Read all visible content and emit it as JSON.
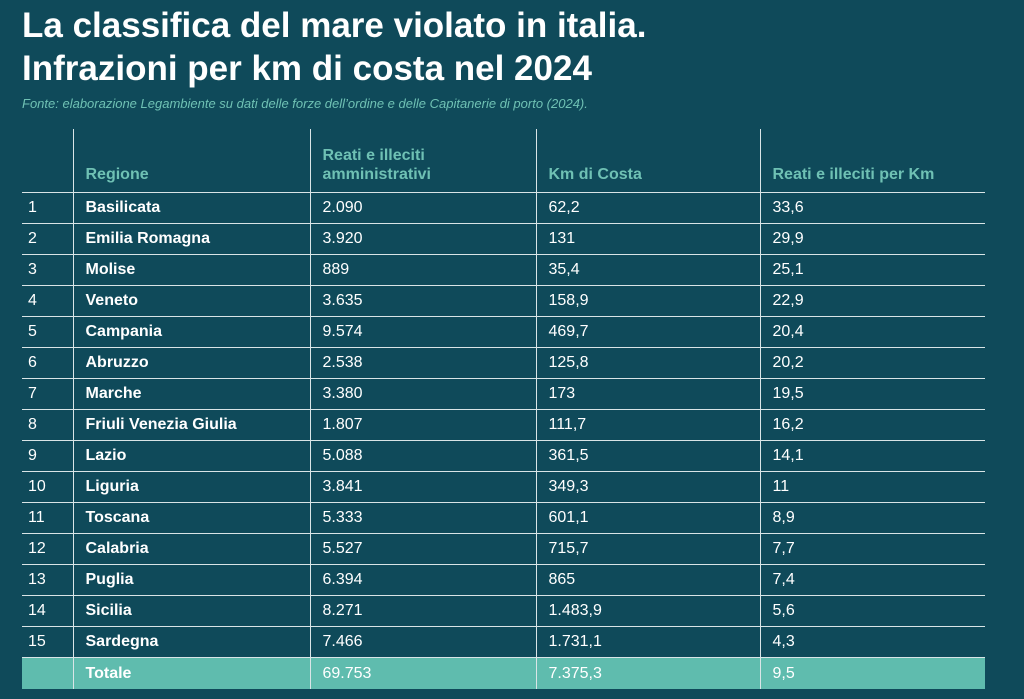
{
  "header": {
    "title_line1": "La classifica del mare violato in italia.",
    "title_line2": "Infrazioni per km di costa nel 2024",
    "source": "Fonte: elaborazione Legambiente su dati delle forze dell’ordine e delle Capitanerie di porto (2024)."
  },
  "table": {
    "columns": [
      "",
      "Regione",
      "Reati e illeciti amministrativi",
      "Km di Costa",
      "Reati e illeciti per Km"
    ],
    "rows": [
      [
        "1",
        "Basilicata",
        "2.090",
        "62,2",
        "33,6"
      ],
      [
        "2",
        "Emilia Romagna",
        "3.920",
        "131",
        "29,9"
      ],
      [
        "3",
        "Molise",
        "889",
        "35,4",
        "25,1"
      ],
      [
        "4",
        "Veneto",
        "3.635",
        "158,9",
        "22,9"
      ],
      [
        "5",
        "Campania",
        "9.574",
        "469,7",
        "20,4"
      ],
      [
        "6",
        "Abruzzo",
        "2.538",
        "125,8",
        "20,2"
      ],
      [
        "7",
        "Marche",
        "3.380",
        "173",
        "19,5"
      ],
      [
        "8",
        "Friuli Venezia Giulia",
        "1.807",
        "111,7",
        "16,2"
      ],
      [
        "9",
        "Lazio",
        "5.088",
        "361,5",
        "14,1"
      ],
      [
        "10",
        "Liguria",
        "3.841",
        "349,3",
        "11"
      ],
      [
        "11",
        "Toscana",
        "5.333",
        "601,1",
        "8,9"
      ],
      [
        "12",
        "Calabria",
        "5.527",
        "715,7",
        "7,7"
      ],
      [
        "13",
        "Puglia",
        "6.394",
        "865",
        "7,4"
      ],
      [
        "14",
        "Sicilia",
        "8.271",
        "1.483,9",
        "5,6"
      ],
      [
        "15",
        "Sardegna",
        "7.466",
        "1.731,1",
        "4,3"
      ]
    ],
    "total": [
      "",
      "Totale",
      "69.753",
      "7.375,3",
      "9,5"
    ]
  },
  "colors": {
    "background": "#0f4a5a",
    "accent": "#6fc1b4",
    "total_row": "#5fbcae",
    "rule": "#d9e5e7"
  }
}
